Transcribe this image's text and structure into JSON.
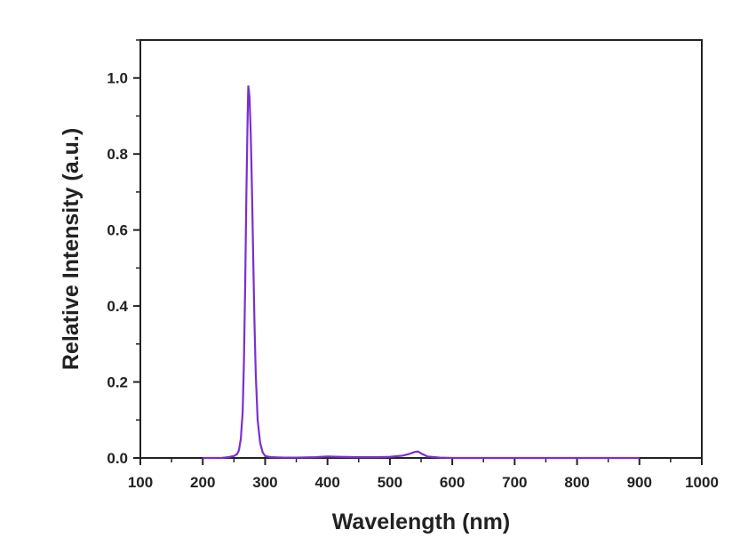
{
  "chart_data": {
    "type": "line",
    "title": "",
    "xlabel": "Wavelength (nm)",
    "ylabel": "Relative Intensity (a.u.)",
    "xlim": [
      100,
      1000
    ],
    "ylim": [
      0.0,
      1.1
    ],
    "xticks": [
      100,
      200,
      300,
      400,
      500,
      600,
      700,
      800,
      900,
      1000
    ],
    "yticks": [
      0.0,
      0.2,
      0.4,
      0.6,
      0.8,
      1.0
    ],
    "xtick_labels": [
      "100",
      "200",
      "300",
      "400",
      "500",
      "600",
      "700",
      "800",
      "900",
      "1000"
    ],
    "ytick_labels": [
      "0.0",
      "0.2",
      "0.4",
      "0.6",
      "0.8",
      "1.0"
    ],
    "grid": false,
    "legend": "none",
    "series": [
      {
        "color": "#7a2fd0",
        "x": [
          200,
          230,
          240,
          250,
          255,
          258,
          261,
          264,
          266,
          268,
          270,
          272,
          273,
          275,
          277,
          279,
          281,
          283,
          285,
          288,
          292,
          296,
          300,
          310,
          330,
          350,
          380,
          400,
          420,
          450,
          480,
          500,
          520,
          530,
          540,
          545,
          550,
          560,
          580,
          600,
          650,
          700,
          750,
          800,
          850,
          900
        ],
        "y": [
          0.0,
          0.0,
          0.002,
          0.005,
          0.01,
          0.02,
          0.05,
          0.12,
          0.25,
          0.45,
          0.7,
          0.9,
          0.98,
          0.95,
          0.85,
          0.7,
          0.52,
          0.35,
          0.22,
          0.1,
          0.04,
          0.015,
          0.005,
          0.002,
          0.001,
          0.001,
          0.002,
          0.004,
          0.003,
          0.002,
          0.002,
          0.003,
          0.006,
          0.01,
          0.016,
          0.017,
          0.012,
          0.004,
          0.001,
          0.0,
          0.0,
          0.0,
          0.0,
          0.0,
          0.0,
          0.0
        ]
      }
    ]
  }
}
